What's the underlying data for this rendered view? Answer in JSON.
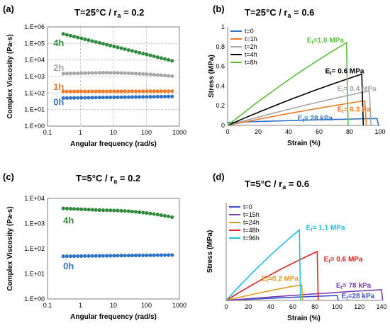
{
  "chart_data": [
    {
      "type": "scatter",
      "panel_label": "(a)",
      "title": "T=25°C / r",
      "title_sub": "a",
      "title_tail": " = 0.2",
      "xlabel": "Angular frequency (rad/s)",
      "ylabel": "Complex Viscosity (Pa·s)",
      "xscale": "log",
      "yscale": "log",
      "xlim": [
        0.1,
        1000
      ],
      "ylim": [
        1,
        1000000
      ],
      "xticks": [
        "0.1",
        "1",
        "10",
        "100",
        "1000"
      ],
      "yticks": [
        "1.E+00",
        "1.E+01",
        "1.E+02",
        "1.E+03",
        "1.E+04",
        "1.E+05",
        "1.E+06"
      ],
      "grid": true,
      "series": [
        {
          "name": "4h",
          "color": "#2e8b3a",
          "x_range": [
            0.3,
            600
          ],
          "y_start": 380000,
          "y_end": 9000
        },
        {
          "name": "2h",
          "color": "#a6a6a6",
          "x_range": [
            0.3,
            600
          ],
          "y_start": 1500,
          "y_mid": 1700,
          "y_end": 1050
        },
        {
          "name": "1h",
          "color": "#f07c2a",
          "x_range": [
            0.3,
            600
          ],
          "y_start": 125,
          "y_end": 130
        },
        {
          "name": "0h",
          "color": "#2d72c4",
          "x_range": [
            0.3,
            600
          ],
          "y_start": 50,
          "y_end": 62
        }
      ],
      "labels": [
        {
          "text": "4h",
          "color": "#2e8b3a",
          "x": 0.15,
          "y": 70000
        },
        {
          "text": "2h",
          "color": "#a6a6a6",
          "x": 0.15,
          "y": 2200
        },
        {
          "text": "1h",
          "color": "#f07c2a",
          "x": 0.15,
          "y": 150
        },
        {
          "text": "0h",
          "color": "#2d72c4",
          "x": 0.15,
          "y": 18
        }
      ]
    },
    {
      "type": "line",
      "panel_label": "(b)",
      "title": "T=25°C / r",
      "title_sub": "a",
      "title_tail": " = 0.6",
      "xlabel": "Strain (%)",
      "ylabel": "Stress (MPa)",
      "xlim": [
        0,
        100
      ],
      "ylim": [
        0,
        1
      ],
      "xticks": [
        "0",
        "20",
        "40",
        "60",
        "80",
        "100"
      ],
      "yticks": [
        "0",
        "0.2",
        "0.4",
        "0.6",
        "0.8",
        "1"
      ],
      "grid": false,
      "series": [
        {
          "name": "t=0",
          "color": "#2d72c4",
          "x_break": 98,
          "y_peak": 0.07,
          "y_start": 0.03
        },
        {
          "name": "t=1h",
          "color": "#f07c2a",
          "x_break": 90,
          "y_peak": 0.25
        },
        {
          "name": "t=2h",
          "color": "#a6a6a6",
          "x_break": 93,
          "y_peak": 0.35
        },
        {
          "name": "t=4h",
          "color": "#000000",
          "x_break": 88,
          "y_peak": 0.52
        },
        {
          "name": "t=8h",
          "color": "#5bbf3a",
          "x_break": 78,
          "y_peak": 0.84
        }
      ],
      "annotations": [
        {
          "label": "E",
          "sub": "t",
          "value": "=1.0 MPa",
          "color": "#5bbf3a",
          "x": 52,
          "y": 0.84
        },
        {
          "label": "E",
          "sub": "t",
          "value": "= 0.6 MPa",
          "color": "#000000",
          "x": 64,
          "y": 0.53
        },
        {
          "label": "E",
          "sub": "t",
          "value": "= 0.4 MPa",
          "color": "#a6a6a6",
          "x": 72,
          "y": 0.35
        },
        {
          "label": "E",
          "sub": "t",
          "value": "= 0.3 Pa",
          "color": "#f07c2a",
          "x": 72,
          "y": 0.14
        },
        {
          "label": "E",
          "sub": "t",
          "value": "= 28 kPa",
          "color": "#2d72c4",
          "x": 46,
          "y": 0.05
        }
      ]
    },
    {
      "type": "scatter",
      "panel_label": "(c)",
      "title": "T=5°C / r",
      "title_sub": "a",
      "title_tail": " = 0.2",
      "xlabel": "Angular frequency (rad/s)",
      "ylabel": "Complex Viscosity (Pa·s)",
      "xscale": "log",
      "yscale": "log",
      "xlim": [
        0.1,
        1000
      ],
      "ylim": [
        1,
        10000
      ],
      "xticks": [
        "0.1",
        "1",
        "10",
        "100",
        "1000"
      ],
      "yticks": [
        "1.E+00",
        "1.E+01",
        "1.E+02",
        "1.E+03",
        "1.E+04"
      ],
      "grid": false,
      "series": [
        {
          "name": "4h",
          "color": "#2e8b3a",
          "x_range": [
            0.3,
            600
          ],
          "y_start": 4000,
          "y_mid": 3400,
          "y_end": 1800
        },
        {
          "name": "0h",
          "color": "#2d72c4",
          "x_range": [
            0.3,
            600
          ],
          "y_start": 50,
          "y_end": 56
        }
      ],
      "labels": [
        {
          "text": "4h",
          "color": "#2e8b3a",
          "x": 0.3,
          "y": 1000
        },
        {
          "text": "0h",
          "color": "#2d72c4",
          "x": 0.3,
          "y": 15
        }
      ]
    },
    {
      "type": "line",
      "panel_label": "(d)",
      "title": "T=5°C / r",
      "title_sub": "a",
      "title_tail": " = 0.6",
      "xlabel": "Strain (%)",
      "ylabel": "Stress (MPa)",
      "xlim": [
        0,
        140
      ],
      "ylim": [
        0,
        1
      ],
      "xticks": [
        "0",
        "20",
        "40",
        "60",
        "80",
        "100",
        "120",
        "140"
      ],
      "yticks": [],
      "grid": false,
      "series": [
        {
          "name": "t=0",
          "color": "#3a4fc9",
          "x_break": 100,
          "y_peak": 0.05
        },
        {
          "name": "t=15h",
          "color": "#7a3fb2",
          "x_break": 140,
          "y_peak": 0.11
        },
        {
          "name": "t=24h",
          "color": "#e09a1a",
          "x_break": 68,
          "y_peak": 0.16
        },
        {
          "name": "t=48h",
          "color": "#e0201e",
          "x_break": 82,
          "y_peak": 0.5
        },
        {
          "name": "t=96h",
          "color": "#1ec0e8",
          "x_break": 66,
          "y_peak": 0.72
        }
      ],
      "annotations": [
        {
          "label": "E",
          "sub": "t",
          "value": "= 1.1 MPa",
          "color": "#1ec0e8",
          "x": 72,
          "y": 0.72
        },
        {
          "label": "E",
          "sub": "t",
          "value": "= 0.6 MPa",
          "color": "#e0201e",
          "x": 88,
          "y": 0.4
        },
        {
          "label": "E",
          "sub": "t",
          "value": "=0.2 MPa",
          "color": "#e09a1a",
          "x": 32,
          "y": 0.2
        },
        {
          "label": "E",
          "sub": "t",
          "value": "= 78 kPa",
          "color": "#7a3fb2",
          "x": 99,
          "y": 0.13
        },
        {
          "label": "E",
          "sub": "t",
          "value": "=28 kPa",
          "color": "#3a4fc9",
          "x": 104,
          "y": 0.02
        }
      ]
    }
  ]
}
